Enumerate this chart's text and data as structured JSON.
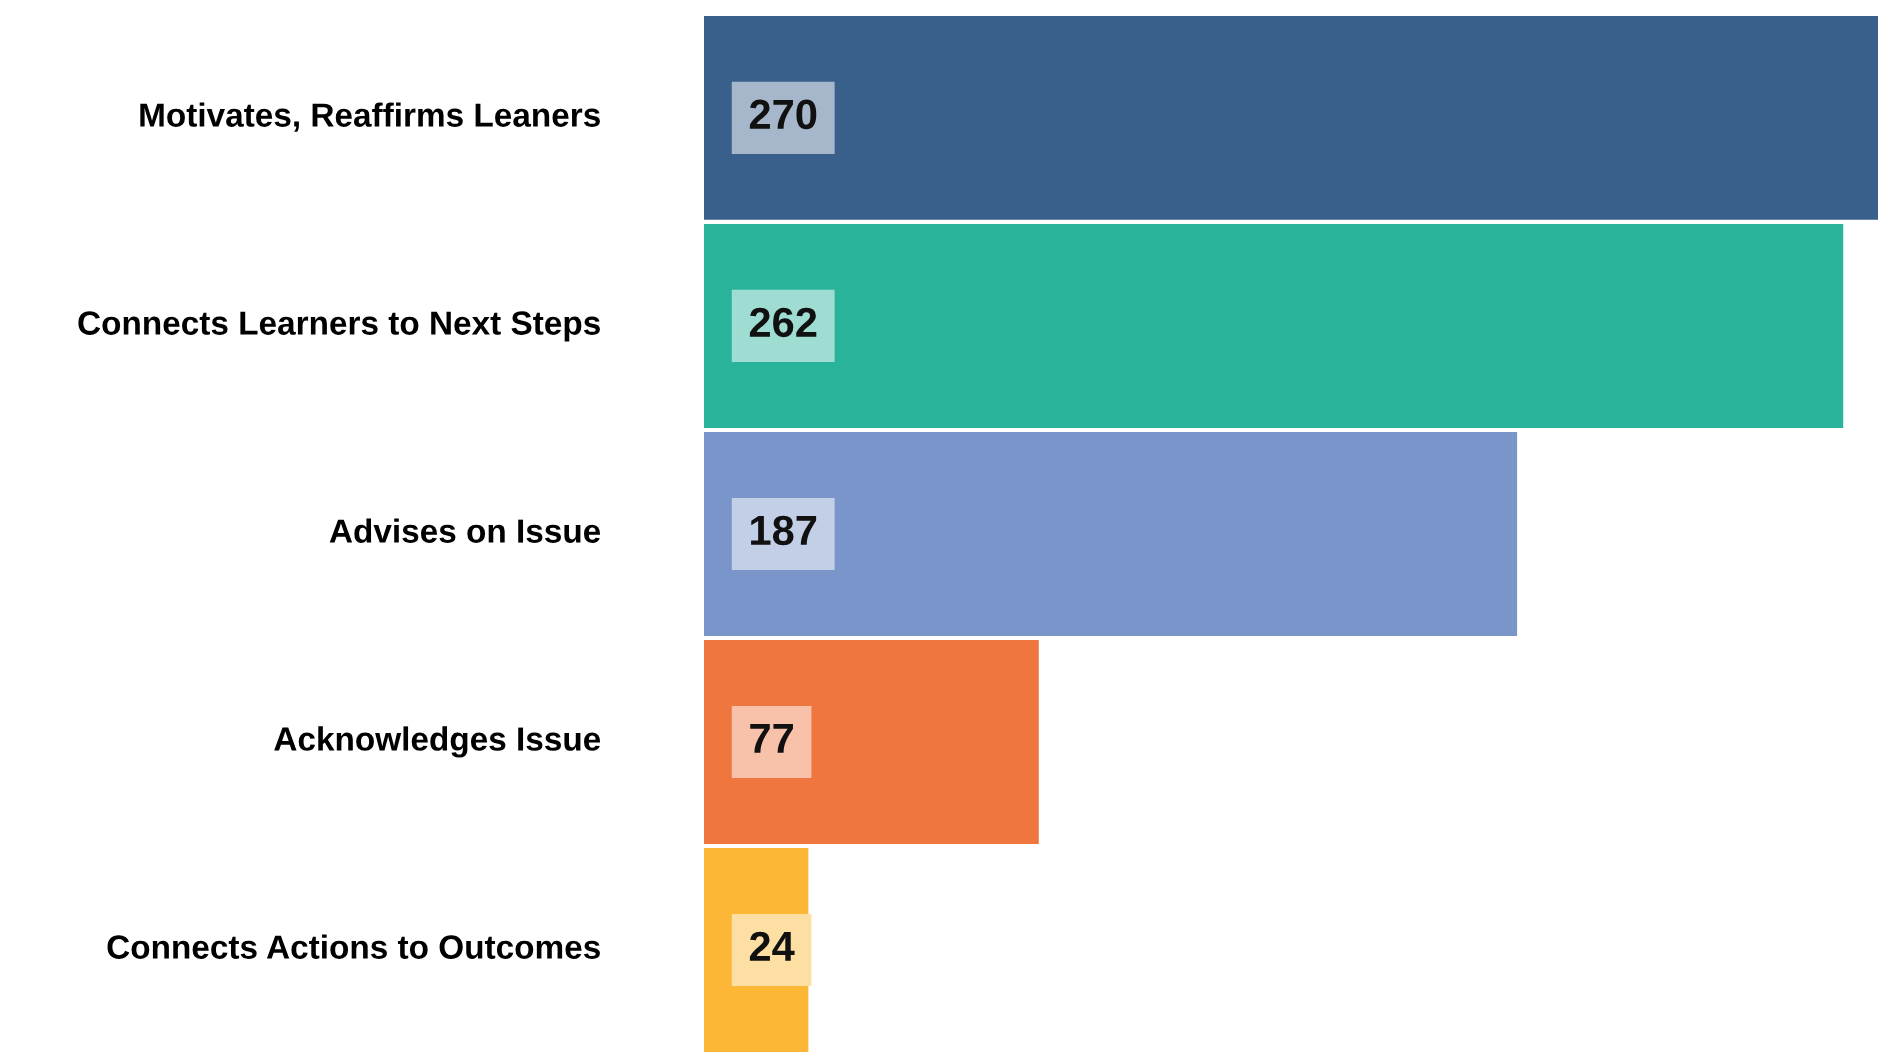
{
  "chart_data": {
    "type": "bar",
    "orientation": "horizontal",
    "categories": [
      "Motivates, Reaffirms Leaners",
      "Connects Learners to Next Steps",
      "Advises on Issue",
      "Acknowledges Issue",
      "Connects Actions to Outcomes"
    ],
    "values": [
      270,
      262,
      187,
      77,
      24
    ],
    "colors": [
      "#395f8b",
      "#29b39a",
      "#7995c9",
      "#f0763f",
      "#fbb735"
    ],
    "xlim": [
      0,
      270
    ],
    "data_labels": true
  }
}
